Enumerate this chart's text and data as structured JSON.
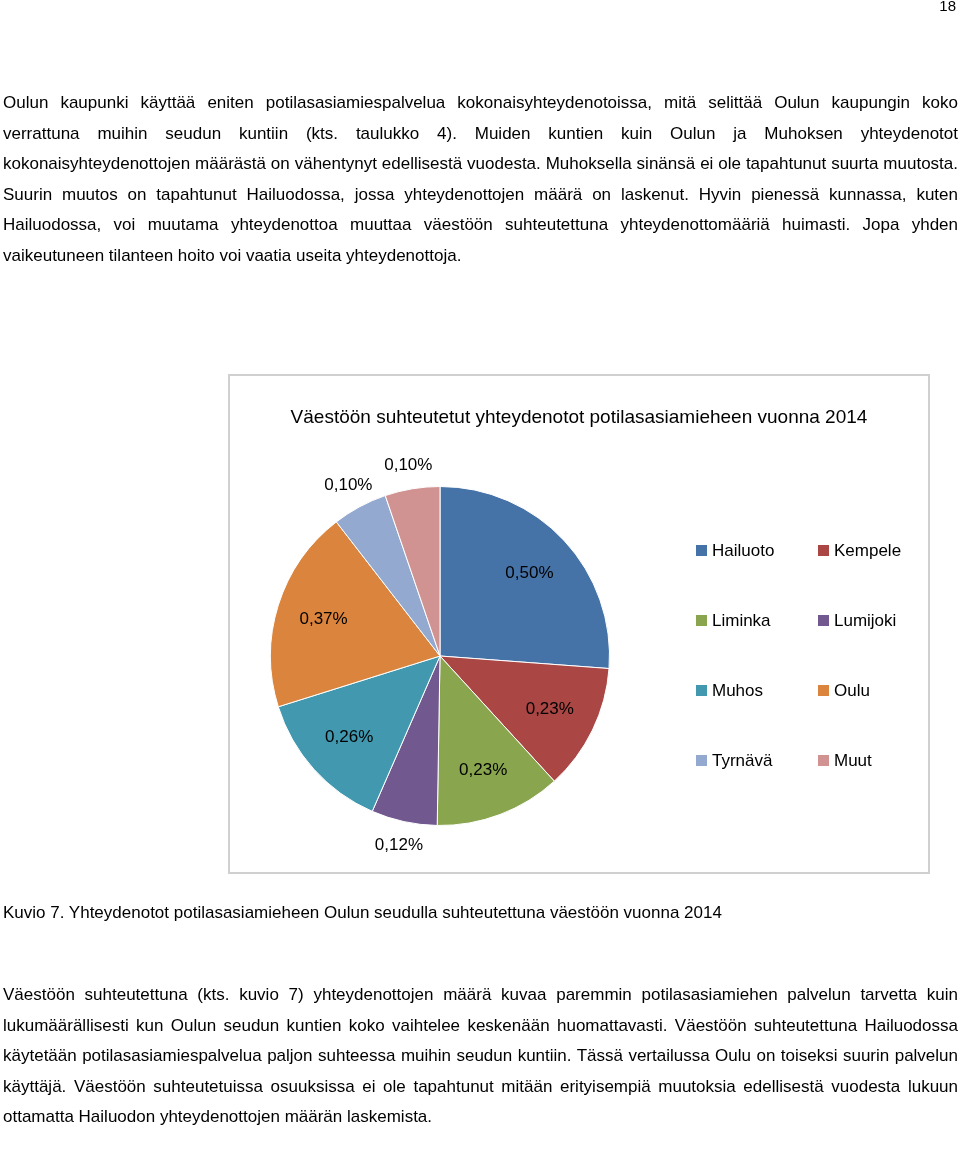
{
  "chart_data": {
    "type": "pie",
    "title": "Väestöön suhteutetut yhteydenotot potilasasiamieheen vuonna 2014",
    "categories": [
      "Hailuoto",
      "Kempele",
      "Liminka",
      "Lumijoki",
      "Muhos",
      "Oulu",
      "Tyrnävä",
      "Muut"
    ],
    "values": [
      0.5,
      0.23,
      0.23,
      0.12,
      0.26,
      0.37,
      0.1,
      0.1
    ],
    "value_labels": [
      "0,50%",
      "0,23%",
      "0,23%",
      "0,12%",
      "0,26%",
      "0,37%",
      "0,10%",
      "0,10%"
    ],
    "colors": [
      "#4572a7",
      "#aa4643",
      "#89a54e",
      "#71588f",
      "#4198af",
      "#db843d",
      "#93a9cf",
      "#d19392"
    ],
    "legend": "right",
    "annotations": [
      "18",
      "Oulun kaupunki käyttää eniten potilasasiamiespalvelua kokonaisyhteydenotoissa, mitä selittää Oulun kaupungin koko verrattuna muihin seudun kuntiin (kts. taulukko 4). Muiden kuntien kuin Oulun ja Muhoksen yhteydenotot kokonaisyhteydenottojen määrästä on vähentynyt edellisestä vuodesta. Muhoksella sinänsä ei ole tapahtunut suurta muutosta. Suurin muutos on tapahtunut Hailuodossa, jossa yhteydenottojen määrä on laskenut. Hyvin pienessä kunnassa, kuten Hailuodossa, voi muutama yhteydenottoa muuttaa väestöön suhteutettuna yhteydenottomääriä huimasti. Jopa yhden vaikeutuneen tilanteen hoito voi vaatia useita yhteydenottoja.",
      "Kuvio 7. Yhteydenotot potilasasiamieheen Oulun seudulla suhteutettuna väestöön vuonna 2014",
      "Väestöön suhteutettuna (kts. kuvio 7) yhteydenottojen määrä kuvaa paremmin potilasasiamiehen palvelun tarvetta kuin lukumäärällisesti kun Oulun seudun kuntien koko vaihtelee keskenään huomattavasti. Väestöön suhteutettuna Hailuodossa käytetään potilasasiamiespalvelua paljon suhteessa muihin seudun kuntiin. Tässä vertailussa Oulu on toiseksi suurin palvelun käyttäjä. Väestöön suhteutetuissa osuuksissa ei ole tapahtunut mitään erityisempiä muutoksia edellisestä vuodesta lukuun ottamatta Hailuodon yhteydenottojen määrän laskemista."
    ]
  }
}
